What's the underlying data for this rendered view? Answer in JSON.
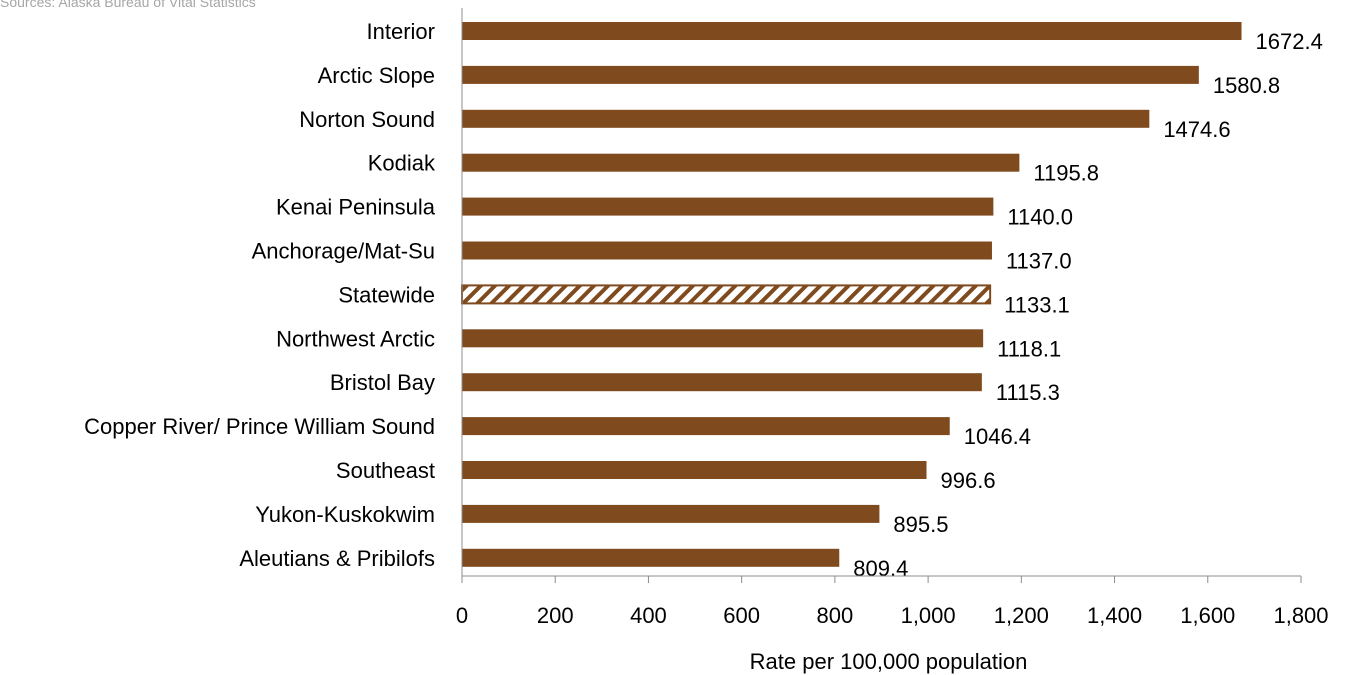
{
  "source_note": "Sources: Alaska Bureau of Vital Statistics",
  "colors": {
    "bar": "#7f4a1e",
    "axis": "#8c8c8c"
  },
  "chart_data": {
    "type": "bar",
    "orientation": "horizontal",
    "categories": [
      "Interior",
      "Arctic Slope",
      "Norton Sound",
      "Kodiak",
      "Kenai Peninsula",
      "Anchorage/Mat-Su",
      "Statewide",
      "Northwest Arctic",
      "Bristol Bay",
      "Copper River/ Prince William Sound",
      "Southeast",
      "Yukon-Kuskokwim",
      "Aleutians & Pribilofs"
    ],
    "values": [
      1672.4,
      1580.8,
      1474.6,
      1195.8,
      1140.0,
      1137.0,
      1133.1,
      1118.1,
      1115.3,
      1046.4,
      996.6,
      895.5,
      809.4
    ],
    "value_labels": [
      "1672.4",
      "1580.8",
      "1474.6",
      "1195.8",
      "1140.0",
      "1137.0",
      "1133.1",
      "1118.1",
      "1115.3",
      "1046.4",
      "996.6",
      "895.5",
      "809.4"
    ],
    "highlight_category": "Statewide",
    "highlight_pattern": "diagonal-hatch",
    "xlabel": "Rate per 100,000 population",
    "ylabel": "",
    "xlim": [
      0,
      1800
    ],
    "xticks": [
      0,
      200,
      400,
      600,
      800,
      1000,
      1200,
      1400,
      1600,
      1800
    ],
    "xtick_labels": [
      "0",
      "200",
      "400",
      "600",
      "800",
      "1,000",
      "1,200",
      "1,400",
      "1,600",
      "1,800"
    ],
    "grid": false,
    "legend": "none"
  }
}
